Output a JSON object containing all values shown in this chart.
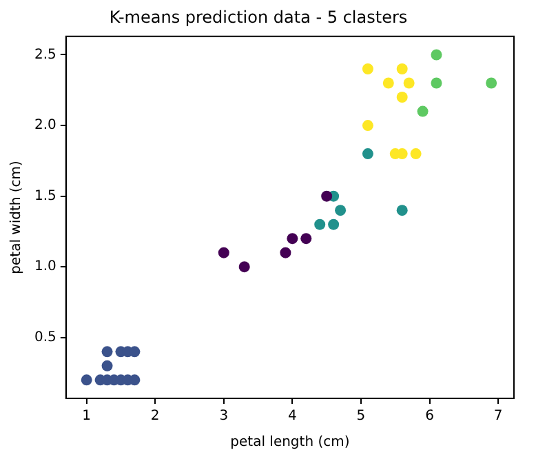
{
  "chart_data": {
    "type": "scatter",
    "title": "K-means prediction data - 5 clasters",
    "xlabel": "petal length (cm)",
    "ylabel": "petal width (cm)",
    "xlim": [
      0.7,
      7.23
    ],
    "ylim": [
      0.07,
      2.63
    ],
    "xticks": [
      1,
      2,
      3,
      4,
      5,
      6,
      7
    ],
    "yticks": [
      0.5,
      {
        "value": 1,
        "label": "1.0"
      },
      1.5,
      {
        "value": 2,
        "label": "2.0"
      },
      2.5
    ],
    "grid": false,
    "legend": false,
    "marker": "circle",
    "series": [
      {
        "color": "#440154",
        "x": [
          3.0,
          3.3,
          3.9,
          4.0,
          4.2,
          4.5
        ],
        "values": [
          1.1,
          1.0,
          1.1,
          1.2,
          1.2,
          1.5
        ]
      },
      {
        "color": "#3b528b",
        "x": [
          1.0,
          1.2,
          1.3,
          1.4,
          1.5,
          1.6,
          1.7,
          1.3,
          1.3,
          1.5,
          1.6,
          1.7
        ],
        "values": [
          0.2,
          0.2,
          0.2,
          0.2,
          0.2,
          0.2,
          0.2,
          0.3,
          0.4,
          0.4,
          0.4,
          0.4
        ]
      },
      {
        "color": "#21918c",
        "x": [
          4.6,
          4.7,
          4.4,
          4.6,
          5.1,
          5.6
        ],
        "values": [
          1.5,
          1.4,
          1.3,
          1.3,
          1.8,
          1.4
        ]
      },
      {
        "color": "#5ec962",
        "x": [
          6.1,
          6.1,
          6.9,
          5.9
        ],
        "values": [
          2.5,
          2.3,
          2.3,
          2.1
        ]
      },
      {
        "color": "#fde725",
        "x": [
          5.1,
          5.6,
          5.4,
          5.7,
          5.6,
          5.1,
          5.5,
          5.6,
          5.8
        ],
        "values": [
          2.4,
          2.4,
          2.3,
          2.3,
          2.2,
          2.0,
          1.8,
          1.8,
          1.8
        ]
      }
    ]
  }
}
